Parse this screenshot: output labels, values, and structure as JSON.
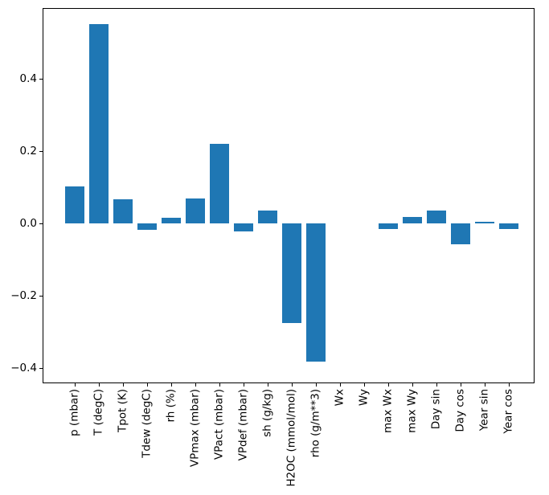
{
  "figure": {
    "background_color": "#ffffff",
    "bar_color": "#1f77b4",
    "axis_color": "#000000"
  },
  "chart_data": {
    "type": "bar",
    "title": "",
    "xlabel": "",
    "ylabel": "",
    "categories": [
      "p (mbar)",
      "T (degC)",
      "Tpot (K)",
      "Tdew (degC)",
      "rh (%)",
      "VPmax (mbar)",
      "VPact (mbar)",
      "VPdef (mbar)",
      "sh (g/kg)",
      "H2OC (mmol/mol)",
      "rho (g/m**3)",
      "Wx",
      "Wy",
      "max Wx",
      "max Wy",
      "Day sin",
      "Day cos",
      "Year sin",
      "Year cos"
    ],
    "values": [
      0.102,
      0.551,
      0.066,
      -0.017,
      0.015,
      0.07,
      0.22,
      -0.021,
      0.035,
      -0.276,
      -0.382,
      0.0,
      0.0,
      -0.016,
      0.017,
      0.035,
      -0.058,
      0.005,
      -0.016
    ],
    "ylim": [
      -0.442,
      0.596
    ],
    "yticks": [
      {
        "value": -0.4,
        "label": "−0.4"
      },
      {
        "value": -0.2,
        "label": "−0.2"
      },
      {
        "value": 0.0,
        "label": "0.0"
      },
      {
        "value": 0.2,
        "label": "0.2"
      },
      {
        "value": 0.4,
        "label": "0.4"
      }
    ],
    "grid": false,
    "legend_position": "none"
  }
}
